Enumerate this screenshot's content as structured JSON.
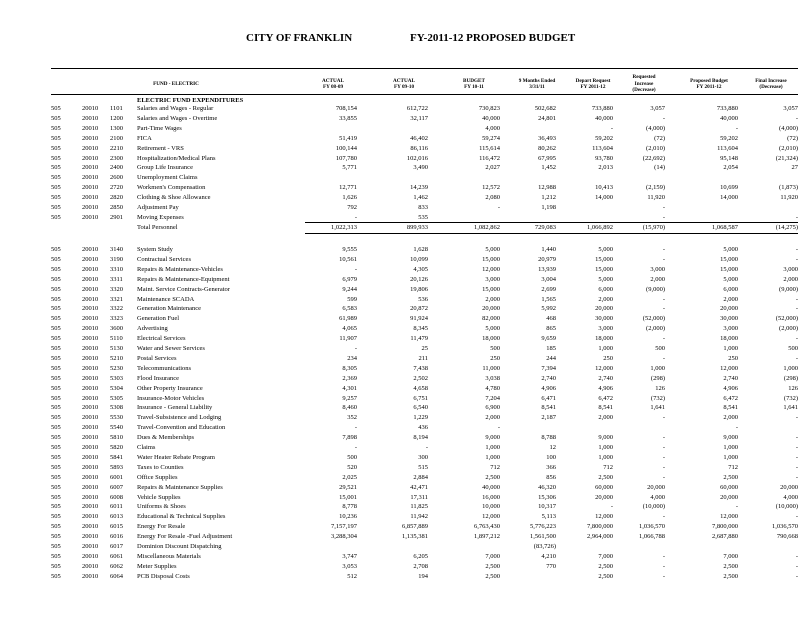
{
  "header": {
    "city": "CITY OF FRANKLIN",
    "budget": "FY-2011-12 PROPOSED BUDGET"
  },
  "columns": {
    "fund": "FUND - ELECTRIC",
    "v": [
      [
        "ACTUAL",
        "FY 08-09"
      ],
      [
        "ACTUAL",
        "FY 09-10"
      ],
      [
        "BUDGET",
        "FY 10-11"
      ],
      [
        "9 Months Ended",
        "3/31/11"
      ],
      [
        "Depart Request",
        "FY 2011-12"
      ],
      [
        "Requested",
        "Increase",
        "(Decrease)"
      ],
      [
        "Proposed Budget",
        "FY 2011-12"
      ],
      [
        "Final Increase",
        "(Decrease)"
      ]
    ]
  },
  "section_title": "ELECTRIC FUND EXPENDITURES",
  "personnel": [
    [
      "505",
      "20010",
      "1101",
      "Salaries and Wages - Regular",
      "708,154",
      "612,722",
      "730,823",
      "502,682",
      "733,880",
      "3,057",
      "733,880",
      "3,057"
    ],
    [
      "505",
      "20010",
      "1200",
      "Salaries and Wages - Overtime",
      "33,855",
      "32,117",
      "40,000",
      "24,801",
      "40,000",
      "-",
      "40,000",
      "-"
    ],
    [
      "505",
      "20010",
      "1300",
      "Part-Time Wages",
      "",
      "",
      "4,000",
      "",
      "-",
      "(4,000)",
      "-",
      "(4,000)"
    ],
    [
      "505",
      "20010",
      "2100",
      "FICA",
      "51,419",
      "46,402",
      "59,274",
      "36,493",
      "59,202",
      "(72)",
      "59,202",
      "(72)"
    ],
    [
      "505",
      "20010",
      "2210",
      "Retirement - VRS",
      "100,144",
      "86,116",
      "115,614",
      "80,262",
      "113,604",
      "(2,010)",
      "113,604",
      "(2,010)"
    ],
    [
      "505",
      "20010",
      "2300",
      "Hospitalization/Medical Plans",
      "107,780",
      "102,016",
      "116,472",
      "67,995",
      "93,780",
      "(22,692)",
      "95,148",
      "(21,324)"
    ],
    [
      "505",
      "20010",
      "2400",
      "Group Life Insurance",
      "5,771",
      "3,490",
      "2,027",
      "1,452",
      "2,013",
      "(14)",
      "2,054",
      "27"
    ],
    [
      "505",
      "20010",
      "2600",
      "Unemployment Claims",
      "",
      "",
      "",
      "",
      "",
      "",
      "",
      ""
    ],
    [
      "505",
      "20010",
      "2720",
      "Workmen's Compensation",
      "12,771",
      "14,239",
      "12,572",
      "12,988",
      "10,413",
      "(2,159)",
      "10,699",
      "(1,873)"
    ],
    [
      "505",
      "20010",
      "2820",
      "Clothing & Shoe Allowance",
      "1,626",
      "1,462",
      "2,080",
      "1,212",
      "14,000",
      "11,920",
      "14,000",
      "11,920"
    ],
    [
      "505",
      "20010",
      "2850",
      "Adjustment Pay",
      "792",
      "833",
      "-",
      "1,198",
      "",
      "-",
      "",
      ""
    ],
    [
      "505",
      "20010",
      "2901",
      "Moving Expenses",
      "-",
      "535",
      "",
      "",
      "",
      "-",
      "",
      "-"
    ],
    [
      "",
      "",
      "",
      "Total Personnel",
      "1,022,313",
      "899,933",
      "1,082,862",
      "729,083",
      "1,066,892",
      "(15,970)",
      "1,068,587",
      "(14,275)"
    ]
  ],
  "operating": [
    [
      "505",
      "20010",
      "3140",
      "System Study",
      "9,555",
      "1,628",
      "5,000",
      "1,440",
      "5,000",
      "-",
      "5,000",
      "-"
    ],
    [
      "505",
      "20010",
      "3190",
      "Contractual Services",
      "10,561",
      "10,099",
      "15,000",
      "20,979",
      "15,000",
      "-",
      "15,000",
      "-"
    ],
    [
      "505",
      "20010",
      "3310",
      "Repairs & Maintenance-Vehicles",
      "-",
      "4,305",
      "12,000",
      "13,939",
      "15,000",
      "3,000",
      "15,000",
      "3,000"
    ],
    [
      "505",
      "20010",
      "3311",
      "Repairs & Maintenance-Equipment",
      "6,979",
      "20,126",
      "3,000",
      "3,004",
      "5,000",
      "2,000",
      "5,000",
      "2,000"
    ],
    [
      "505",
      "20010",
      "3320",
      "Maint. Service Contracts-Generator",
      "9,244",
      "19,806",
      "15,000",
      "2,699",
      "6,000",
      "(9,000)",
      "6,000",
      "(9,000)"
    ],
    [
      "505",
      "20010",
      "3321",
      "Maintenance SCADA",
      "599",
      "536",
      "2,000",
      "1,565",
      "2,000",
      "-",
      "2,000",
      "-"
    ],
    [
      "505",
      "20010",
      "3322",
      "Generation Maintenance",
      "6,583",
      "20,872",
      "20,000",
      "5,992",
      "20,000",
      "-",
      "20,000",
      "-"
    ],
    [
      "505",
      "20010",
      "3323",
      "Generation Fuel",
      "61,989",
      "91,924",
      "82,000",
      "468",
      "30,000",
      "(52,000)",
      "30,000",
      "(52,000)"
    ],
    [
      "505",
      "20010",
      "3600",
      "Advertising",
      "4,065",
      "8,345",
      "5,000",
      "865",
      "3,000",
      "(2,000)",
      "3,000",
      "(2,000)"
    ],
    [
      "505",
      "20010",
      "5110",
      "Electrical Services",
      "11,907",
      "11,479",
      "18,000",
      "9,659",
      "18,000",
      "-",
      "18,000",
      "-"
    ],
    [
      "505",
      "20010",
      "5130",
      "Water and Sewer Services",
      "-",
      "25",
      "500",
      "185",
      "1,000",
      "500",
      "1,000",
      "500"
    ],
    [
      "505",
      "20010",
      "5210",
      "Postal Services",
      "234",
      "211",
      "250",
      "244",
      "250",
      "-",
      "250",
      "-"
    ],
    [
      "505",
      "20010",
      "5230",
      "Telecommunications",
      "8,305",
      "7,438",
      "11,000",
      "7,394",
      "12,000",
      "1,000",
      "12,000",
      "1,000"
    ],
    [
      "505",
      "20010",
      "5303",
      "Flood Insurance",
      "2,369",
      "2,502",
      "3,038",
      "2,740",
      "2,740",
      "(298)",
      "2,740",
      "(298)"
    ],
    [
      "505",
      "20010",
      "5304",
      "Other Property Insurance",
      "4,301",
      "4,658",
      "4,780",
      "4,906",
      "4,906",
      "126",
      "4,906",
      "126"
    ],
    [
      "505",
      "20010",
      "5305",
      "Insurance-Motor Vehicles",
      "9,257",
      "6,751",
      "7,204",
      "6,471",
      "6,472",
      "(732)",
      "6,472",
      "(732)"
    ],
    [
      "505",
      "20010",
      "5308",
      "Insurance - General Liability",
      "8,460",
      "6,540",
      "6,900",
      "8,541",
      "8,541",
      "1,641",
      "8,541",
      "1,641"
    ],
    [
      "505",
      "20010",
      "5530",
      "Travel-Subsistence and Lodging",
      "352",
      "1,229",
      "2,000",
      "2,187",
      "2,000",
      "-",
      "2,000",
      "-"
    ],
    [
      "505",
      "20010",
      "5540",
      "Travel-Convention and Education",
      "-",
      "436",
      "-",
      "",
      "",
      "",
      "-",
      ""
    ],
    [
      "505",
      "20010",
      "5810",
      "Dues & Memberships",
      "7,898",
      "8,194",
      "9,000",
      "8,788",
      "9,000",
      "-",
      "9,000",
      "-"
    ],
    [
      "505",
      "20010",
      "5820",
      "Claims",
      "-",
      "-",
      "1,000",
      "12",
      "1,000",
      "-",
      "1,000",
      "-"
    ],
    [
      "505",
      "20010",
      "5841",
      "Water Heater Rebate Program",
      "500",
      "300",
      "1,000",
      "100",
      "1,000",
      "-",
      "1,000",
      "-"
    ],
    [
      "505",
      "20010",
      "5893",
      "Taxes to Counties",
      "520",
      "515",
      "712",
      "366",
      "712",
      "-",
      "712",
      "-"
    ],
    [
      "505",
      "20010",
      "6001",
      "Office Supplies",
      "2,025",
      "2,884",
      "2,500",
      "856",
      "2,500",
      "-",
      "2,500",
      "-"
    ],
    [
      "505",
      "20010",
      "6007",
      "Repairs & Maintenance Supplies",
      "29,521",
      "42,471",
      "40,000",
      "46,320",
      "60,000",
      "20,000",
      "60,000",
      "20,000"
    ],
    [
      "505",
      "20010",
      "6008",
      "Vehicle Supplies",
      "15,001",
      "17,311",
      "16,000",
      "15,306",
      "20,000",
      "4,000",
      "20,000",
      "4,000"
    ],
    [
      "505",
      "20010",
      "6011",
      "Uniforms & Shoes",
      "8,778",
      "11,825",
      "10,000",
      "10,317",
      "-",
      "(10,000)",
      "-",
      "(10,000)"
    ],
    [
      "505",
      "20010",
      "6013",
      "Educational & Technical Supplies",
      "10,236",
      "11,942",
      "12,000",
      "5,113",
      "12,000",
      "-",
      "12,000",
      "-"
    ],
    [
      "505",
      "20010",
      "6015",
      "Energy For Resale",
      "7,157,197",
      "6,857,889",
      "6,763,430",
      "5,776,223",
      "7,800,000",
      "1,036,570",
      "7,800,000",
      "1,036,570"
    ],
    [
      "505",
      "20010",
      "6016",
      "Energy For Resale -Fuel Adjustment",
      "3,288,304",
      "1,135,381",
      "1,897,212",
      "1,561,500",
      "2,964,000",
      "1,066,788",
      "2,687,880",
      "790,668"
    ],
    [
      "505",
      "20010",
      "6017",
      "Dominion Discount Dispatching",
      "",
      "",
      "",
      "(83,726)",
      "",
      "",
      "",
      ""
    ],
    [
      "505",
      "20010",
      "6061",
      "Miscellaneous Materials",
      "3,747",
      "6,205",
      "7,000",
      "4,210",
      "7,000",
      "-",
      "7,000",
      "-"
    ],
    [
      "505",
      "20010",
      "6062",
      "Meter Supplies",
      "3,053",
      "2,708",
      "2,500",
      "770",
      "2,500",
      "-",
      "2,500",
      "-"
    ],
    [
      "505",
      "20010",
      "6064",
      "PCB Disposal Costs",
      "512",
      "194",
      "2,500",
      "",
      "2,500",
      "-",
      "2,500",
      "-"
    ]
  ]
}
